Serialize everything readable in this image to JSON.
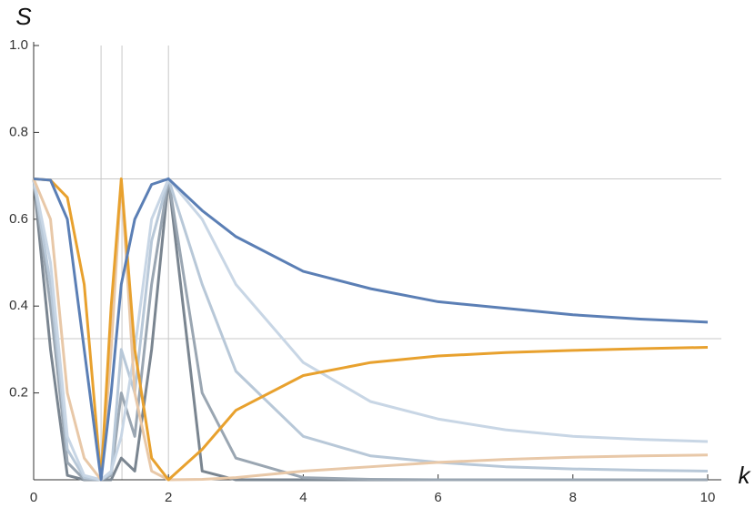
{
  "chart_data": {
    "type": "line",
    "x_label": "k",
    "y_label": "S",
    "xlim": [
      0,
      10
    ],
    "ylim": [
      0,
      1.0
    ],
    "xticks": [
      0,
      2,
      4,
      6,
      8,
      10
    ],
    "yticks": [
      0.2,
      0.4,
      0.6,
      0.8,
      {
        "value": 1.0,
        "label": "1.0"
      }
    ],
    "vlines": [
      1,
      1.31,
      2
    ],
    "hlines": [
      0.693,
      0.325
    ],
    "x": [
      0,
      0.25,
      0.5,
      0.75,
      1,
      1.15,
      1.3,
      1.5,
      1.75,
      2,
      2.5,
      3,
      4,
      5,
      6,
      7,
      8,
      9,
      10
    ],
    "series": [
      {
        "color": "#7a8590",
        "values": [
          0.693,
          0.3,
          0.01,
          0,
          0,
          0,
          0.05,
          0.02,
          0.3,
          0.693,
          0.02,
          0,
          0,
          0,
          0,
          0,
          0,
          0,
          0
        ]
      },
      {
        "color": "#9aa6b2",
        "values": [
          0.693,
          0.4,
          0.04,
          0.001,
          0,
          0.01,
          0.2,
          0.1,
          0.45,
          0.693,
          0.2,
          0.05,
          0.005,
          0.001,
          0,
          0,
          0,
          0,
          0
        ]
      },
      {
        "color": "#b8c8d8",
        "values": [
          0.693,
          0.45,
          0.07,
          0.005,
          0,
          0.015,
          0.3,
          0.2,
          0.55,
          0.693,
          0.45,
          0.25,
          0.1,
          0.055,
          0.04,
          0.03,
          0.025,
          0.022,
          0.02
        ]
      },
      {
        "color": "#c8d6e5",
        "values": [
          0.693,
          0.5,
          0.1,
          0.01,
          0,
          0.02,
          0.1,
          0.3,
          0.6,
          0.693,
          0.6,
          0.45,
          0.27,
          0.18,
          0.14,
          0.115,
          0.1,
          0.093,
          0.088
        ]
      },
      {
        "color": "#e8c8a8",
        "values": [
          0.693,
          0.6,
          0.2,
          0.05,
          0,
          0.3,
          0.69,
          0.2,
          0.02,
          0,
          0.001,
          0.005,
          0.02,
          0.03,
          0.04,
          0.047,
          0.052,
          0.055,
          0.057
        ]
      },
      {
        "color": "#e8a12e",
        "values": [
          0.693,
          0.69,
          0.65,
          0.45,
          0,
          0.4,
          0.693,
          0.3,
          0.05,
          0,
          0.07,
          0.16,
          0.24,
          0.27,
          0.285,
          0.293,
          0.298,
          0.302,
          0.305
        ]
      },
      {
        "color": "#5b7fb5",
        "values": [
          0.693,
          0.69,
          0.6,
          0.3,
          0,
          0.2,
          0.45,
          0.6,
          0.68,
          0.693,
          0.62,
          0.56,
          0.48,
          0.44,
          0.41,
          0.395,
          0.38,
          0.37,
          0.363
        ]
      }
    ]
  }
}
